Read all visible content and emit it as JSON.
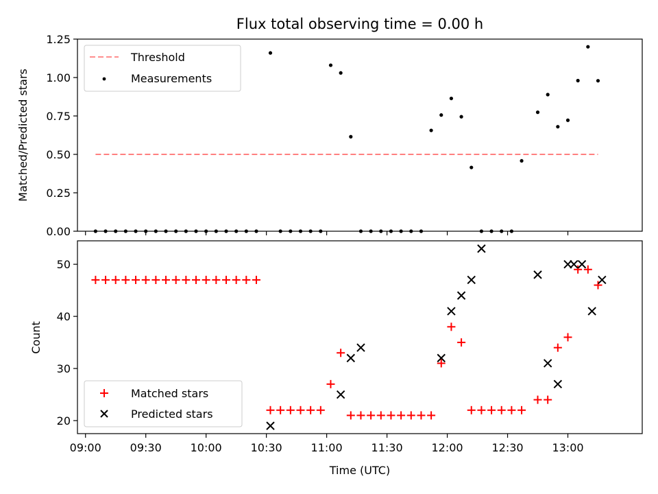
{
  "chart_data": [
    {
      "type": "scatter",
      "title": "Flux total observing time = 0.00 h",
      "xlabel": "",
      "ylabel": "Matched/Predicted stars",
      "ylim": [
        0,
        1.25
      ],
      "yticks": [
        "0.00",
        "0.25",
        "0.50",
        "0.75",
        "1.00",
        "1.25"
      ],
      "ytick_values": [
        0,
        0.25,
        0.5,
        0.75,
        1.0,
        1.25
      ],
      "legend_position": "top-left",
      "threshold": {
        "name": "Threshold",
        "value": 0.5,
        "x_start": "09:05",
        "x_end": "13:15",
        "color": "#ff7f7f"
      },
      "series": [
        {
          "name": "Measurements",
          "color": "#000000",
          "x": [
            "09:05",
            "09:10",
            "09:15",
            "09:20",
            "09:25",
            "09:30",
            "09:35",
            "09:40",
            "09:45",
            "09:50",
            "09:55",
            "10:00",
            "10:05",
            "10:10",
            "10:15",
            "10:20",
            "10:25",
            "10:32",
            "10:37",
            "10:42",
            "10:47",
            "10:52",
            "10:57",
            "11:02",
            "11:07",
            "11:12",
            "11:17",
            "11:22",
            "11:27",
            "11:32",
            "11:37",
            "11:42",
            "11:47",
            "11:52",
            "11:57",
            "12:02",
            "12:07",
            "12:12",
            "12:17",
            "12:22",
            "12:27",
            "12:32",
            "12:37",
            "12:45",
            "12:50",
            "12:55",
            "13:00",
            "13:05",
            "13:10",
            "13:15"
          ],
          "y": [
            0,
            0,
            0,
            0,
            0,
            0,
            0,
            0,
            0,
            0,
            0,
            0,
            0,
            0,
            0,
            0,
            0,
            1.16,
            0,
            0,
            0,
            0,
            0,
            1.08,
            1.03,
            0.615,
            0,
            0,
            0,
            0,
            0,
            0,
            0,
            0.656,
            0.756,
            0.864,
            0.745,
            0.415,
            0,
            0,
            0,
            0,
            0.458,
            0.774,
            0.889,
            0.68,
            0.722,
            0.98,
            1.2,
            0.979
          ]
        }
      ]
    },
    {
      "type": "scatter",
      "xlabel": "Time (UTC)",
      "ylabel": "Count",
      "ylim": [
        17.5,
        54.5
      ],
      "yticks": [
        "20",
        "30",
        "40",
        "50"
      ],
      "ytick_values": [
        20,
        30,
        40,
        50
      ],
      "xticks": [
        "09:00",
        "09:30",
        "10:00",
        "10:30",
        "11:00",
        "11:30",
        "12:00",
        "12:30",
        "13:00"
      ],
      "xlim": [
        "08:56",
        "13:37"
      ],
      "legend_position": "bottom-left",
      "series": [
        {
          "name": "Matched stars",
          "color": "#ff0000",
          "marker": "+",
          "x": [
            "09:05",
            "09:10",
            "09:15",
            "09:20",
            "09:25",
            "09:30",
            "09:35",
            "09:40",
            "09:45",
            "09:50",
            "09:55",
            "10:00",
            "10:05",
            "10:10",
            "10:15",
            "10:20",
            "10:25",
            "10:32",
            "10:37",
            "10:42",
            "10:47",
            "10:52",
            "10:57",
            "11:02",
            "11:07",
            "11:12",
            "11:17",
            "11:22",
            "11:27",
            "11:32",
            "11:37",
            "11:42",
            "11:47",
            "11:52",
            "11:57",
            "12:02",
            "12:07",
            "12:12",
            "12:17",
            "12:22",
            "12:27",
            "12:32",
            "12:37",
            "12:45",
            "12:50",
            "12:55",
            "13:00",
            "13:05",
            "13:10",
            "13:15"
          ],
          "y": [
            47,
            47,
            47,
            47,
            47,
            47,
            47,
            47,
            47,
            47,
            47,
            47,
            47,
            47,
            47,
            47,
            47,
            22,
            22,
            22,
            22,
            22,
            22,
            27,
            33,
            21,
            21,
            21,
            21,
            21,
            21,
            21,
            21,
            21,
            31,
            38,
            35,
            22,
            22,
            22,
            22,
            22,
            22,
            24,
            24,
            34,
            36,
            49,
            49,
            46
          ]
        },
        {
          "name": "Predicted stars",
          "color": "#000000",
          "marker": "x",
          "x": [
            "10:32",
            "11:07",
            "11:12",
            "11:17",
            "11:57",
            "12:02",
            "12:07",
            "12:12",
            "12:17",
            "12:45",
            "12:50",
            "12:55",
            "13:00",
            "13:03",
            "13:07",
            "13:12",
            "13:17"
          ],
          "y": [
            19,
            25,
            32,
            34,
            32,
            41,
            44,
            47,
            53,
            48,
            31,
            27,
            50,
            50,
            50,
            41,
            47
          ]
        }
      ]
    }
  ]
}
